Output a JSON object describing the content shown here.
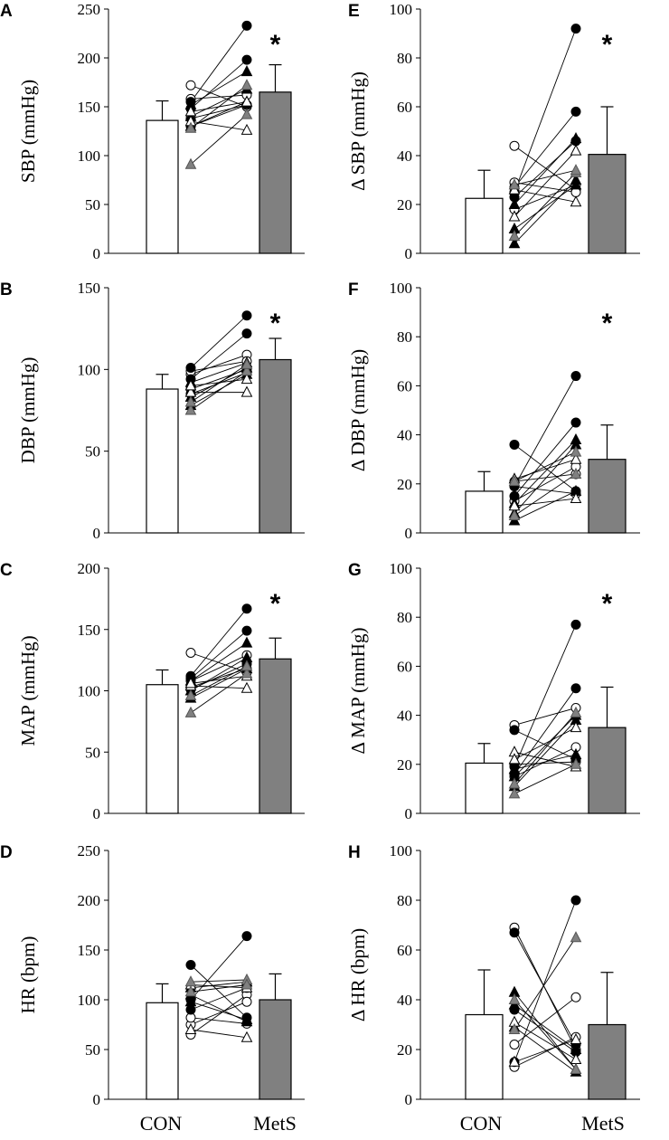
{
  "categories": [
    "CON",
    "MetS"
  ],
  "colors": {
    "con_bar": "#ffffff",
    "mets_bar": "#808080",
    "stroke": "#000000",
    "grey_marker": "#808080"
  },
  "chart_data": [
    {
      "panel": "A",
      "type": "bar",
      "ylabel": "SBP (mmHg)",
      "ylim": [
        0,
        250
      ],
      "yticks": [
        "0",
        "50",
        "100",
        "150",
        "200",
        "250"
      ],
      "categories": [
        "CON",
        "MetS"
      ],
      "series": [
        {
          "name": "CON",
          "value": 136,
          "error": 20
        },
        {
          "name": "MetS",
          "value": 165,
          "error": 28
        }
      ],
      "significance": "*",
      "pairs": [
        {
          "shape": "circle",
          "fill": "white",
          "values": [
            172,
            150
          ]
        },
        {
          "shape": "circle",
          "fill": "white",
          "values": [
            158,
            162
          ]
        },
        {
          "shape": "circle",
          "fill": "white",
          "values": [
            138,
            152
          ]
        },
        {
          "shape": "circle",
          "fill": "black",
          "values": [
            155,
            233
          ]
        },
        {
          "shape": "circle",
          "fill": "black",
          "values": [
            148,
            198
          ]
        },
        {
          "shape": "circle",
          "fill": "black",
          "values": [
            130,
            152
          ]
        },
        {
          "shape": "triangle",
          "fill": "black",
          "values": [
            152,
            186
          ]
        },
        {
          "shape": "triangle",
          "fill": "black",
          "values": [
            140,
            168
          ]
        },
        {
          "shape": "triangle",
          "fill": "black",
          "values": [
            130,
            155
          ]
        },
        {
          "shape": "triangle",
          "fill": "white",
          "values": [
            135,
            126
          ]
        },
        {
          "shape": "triangle",
          "fill": "white",
          "values": [
            145,
            155
          ]
        },
        {
          "shape": "triangle",
          "fill": "grey",
          "values": [
            91,
            142
          ]
        },
        {
          "shape": "triangle",
          "fill": "grey",
          "values": [
            128,
            172
          ]
        }
      ]
    },
    {
      "panel": "E",
      "type": "bar",
      "ylabel": "Δ SBP (mmHg)",
      "ylim": [
        0,
        100
      ],
      "yticks": [
        "0",
        "20",
        "40",
        "60",
        "80",
        "100"
      ],
      "categories": [
        "CON",
        "MetS"
      ],
      "series": [
        {
          "name": "CON",
          "value": 22.5,
          "error": 11.5
        },
        {
          "name": "MetS",
          "value": 40.5,
          "error": 19.5
        }
      ],
      "significance": "*",
      "pairs": [
        {
          "shape": "circle",
          "fill": "white",
          "values": [
            44,
            26
          ]
        },
        {
          "shape": "circle",
          "fill": "white",
          "values": [
            18,
            28
          ]
        },
        {
          "shape": "circle",
          "fill": "white",
          "values": [
            29,
            25
          ]
        },
        {
          "shape": "circle",
          "fill": "black",
          "values": [
            25,
            92
          ]
        },
        {
          "shape": "circle",
          "fill": "black",
          "values": [
            27,
            58
          ]
        },
        {
          "shape": "circle",
          "fill": "black",
          "values": [
            23,
            46
          ]
        },
        {
          "shape": "triangle",
          "fill": "black",
          "values": [
            20,
            47
          ]
        },
        {
          "shape": "triangle",
          "fill": "black",
          "values": [
            10,
            28
          ]
        },
        {
          "shape": "triangle",
          "fill": "black",
          "values": [
            4,
            30
          ]
        },
        {
          "shape": "triangle",
          "fill": "white",
          "values": [
            15,
            42
          ]
        },
        {
          "shape": "triangle",
          "fill": "white",
          "values": [
            26,
            21
          ]
        },
        {
          "shape": "triangle",
          "fill": "grey",
          "values": [
            7,
            33
          ]
        },
        {
          "shape": "triangle",
          "fill": "grey",
          "values": [
            28,
            34
          ]
        }
      ]
    },
    {
      "panel": "B",
      "type": "bar",
      "ylabel": "DBP (mmHg)",
      "ylim": [
        0,
        150
      ],
      "yticks": [
        "0",
        "50",
        "100",
        "150"
      ],
      "categories": [
        "CON",
        "MetS"
      ],
      "series": [
        {
          "name": "CON",
          "value": 88,
          "error": 9
        },
        {
          "name": "MetS",
          "value": 106,
          "error": 13
        }
      ],
      "significance": "*",
      "pairs": [
        {
          "shape": "circle",
          "fill": "white",
          "values": [
            97,
            109
          ]
        },
        {
          "shape": "circle",
          "fill": "white",
          "values": [
            99,
            105
          ]
        },
        {
          "shape": "circle",
          "fill": "white",
          "values": [
            88,
            100
          ]
        },
        {
          "shape": "circle",
          "fill": "black",
          "values": [
            101,
            133
          ]
        },
        {
          "shape": "circle",
          "fill": "black",
          "values": [
            94,
            122
          ]
        },
        {
          "shape": "circle",
          "fill": "black",
          "values": [
            85,
            98
          ]
        },
        {
          "shape": "triangle",
          "fill": "black",
          "values": [
            92,
            104
          ]
        },
        {
          "shape": "triangle",
          "fill": "black",
          "values": [
            83,
            101
          ]
        },
        {
          "shape": "triangle",
          "fill": "black",
          "values": [
            78,
            97
          ]
        },
        {
          "shape": "triangle",
          "fill": "white",
          "values": [
            86,
            86
          ]
        },
        {
          "shape": "triangle",
          "fill": "white",
          "values": [
            90,
            94
          ]
        },
        {
          "shape": "triangle",
          "fill": "grey",
          "values": [
            75,
            99
          ]
        },
        {
          "shape": "triangle",
          "fill": "grey",
          "values": [
            80,
            103
          ]
        }
      ]
    },
    {
      "panel": "F",
      "type": "bar",
      "ylabel": "Δ DBP (mmHg)",
      "ylim": [
        0,
        100
      ],
      "yticks": [
        "0",
        "20",
        "40",
        "60",
        "80",
        "100"
      ],
      "categories": [
        "CON",
        "MetS"
      ],
      "series": [
        {
          "name": "CON",
          "value": 17,
          "error": 8
        },
        {
          "name": "MetS",
          "value": 30,
          "error": 14
        }
      ],
      "significance": "*",
      "pairs": [
        {
          "shape": "circle",
          "fill": "white",
          "values": [
            21,
            24
          ]
        },
        {
          "shape": "circle",
          "fill": "white",
          "values": [
            13,
            27
          ]
        },
        {
          "shape": "circle",
          "fill": "white",
          "values": [
            19,
            16
          ]
        },
        {
          "shape": "circle",
          "fill": "black",
          "values": [
            36,
            17
          ]
        },
        {
          "shape": "circle",
          "fill": "black",
          "values": [
            19,
            64
          ]
        },
        {
          "shape": "circle",
          "fill": "black",
          "values": [
            15,
            45
          ]
        },
        {
          "shape": "triangle",
          "fill": "black",
          "values": [
            12,
            38
          ]
        },
        {
          "shape": "triangle",
          "fill": "black",
          "values": [
            8,
            36
          ]
        },
        {
          "shape": "triangle",
          "fill": "black",
          "values": [
            5,
            17
          ]
        },
        {
          "shape": "triangle",
          "fill": "white",
          "values": [
            11,
            14
          ]
        },
        {
          "shape": "triangle",
          "fill": "white",
          "values": [
            22,
            30
          ]
        },
        {
          "shape": "triangle",
          "fill": "grey",
          "values": [
            7,
            24
          ]
        },
        {
          "shape": "triangle",
          "fill": "grey",
          "values": [
            21,
            33
          ]
        }
      ]
    },
    {
      "panel": "C",
      "type": "bar",
      "ylabel": "MAP (mmHg)",
      "ylim": [
        0,
        200
      ],
      "yticks": [
        "0",
        "50",
        "100",
        "150",
        "200"
      ],
      "categories": [
        "CON",
        "MetS"
      ],
      "series": [
        {
          "name": "CON",
          "value": 105,
          "error": 12
        },
        {
          "name": "MetS",
          "value": 126,
          "error": 17
        }
      ],
      "significance": "*",
      "pairs": [
        {
          "shape": "circle",
          "fill": "white",
          "values": [
            131,
            115
          ]
        },
        {
          "shape": "circle",
          "fill": "white",
          "values": [
            108,
            129
          ]
        },
        {
          "shape": "circle",
          "fill": "white",
          "values": [
            103,
            118
          ]
        },
        {
          "shape": "circle",
          "fill": "black",
          "values": [
            112,
            167
          ]
        },
        {
          "shape": "circle",
          "fill": "black",
          "values": [
            110,
            149
          ]
        },
        {
          "shape": "circle",
          "fill": "black",
          "values": [
            101,
            122
          ]
        },
        {
          "shape": "triangle",
          "fill": "black",
          "values": [
            108,
            139
          ]
        },
        {
          "shape": "triangle",
          "fill": "black",
          "values": [
            100,
            127
          ]
        },
        {
          "shape": "triangle",
          "fill": "black",
          "values": [
            94,
            118
          ]
        },
        {
          "shape": "triangle",
          "fill": "white",
          "values": [
            104,
            102
          ]
        },
        {
          "shape": "triangle",
          "fill": "white",
          "values": [
            106,
            112
          ]
        },
        {
          "shape": "triangle",
          "fill": "grey",
          "values": [
            82,
            114
          ]
        },
        {
          "shape": "triangle",
          "fill": "grey",
          "values": [
            96,
            120
          ]
        }
      ]
    },
    {
      "panel": "G",
      "type": "bar",
      "ylabel": "Δ MAP (mmHg)",
      "ylim": [
        0,
        100
      ],
      "yticks": [
        "0",
        "20",
        "40",
        "60",
        "80",
        "100"
      ],
      "categories": [
        "CON",
        "MetS"
      ],
      "series": [
        {
          "name": "CON",
          "value": 20.5,
          "error": 8
        },
        {
          "name": "MetS",
          "value": 35,
          "error": 16.5
        }
      ],
      "significance": "*",
      "pairs": [
        {
          "shape": "circle",
          "fill": "white",
          "values": [
            36,
            43
          ]
        },
        {
          "shape": "circle",
          "fill": "white",
          "values": [
            15,
            27
          ]
        },
        {
          "shape": "circle",
          "fill": "white",
          "values": [
            20,
            21
          ]
        },
        {
          "shape": "circle",
          "fill": "black",
          "values": [
            34,
            22
          ]
        },
        {
          "shape": "circle",
          "fill": "black",
          "values": [
            19,
            77
          ]
        },
        {
          "shape": "circle",
          "fill": "black",
          "values": [
            16,
            51
          ]
        },
        {
          "shape": "triangle",
          "fill": "black",
          "values": [
            15,
            40
          ]
        },
        {
          "shape": "triangle",
          "fill": "black",
          "values": [
            11,
            38
          ]
        },
        {
          "shape": "triangle",
          "fill": "black",
          "values": [
            18,
            24
          ]
        },
        {
          "shape": "triangle",
          "fill": "white",
          "values": [
            25,
            19
          ]
        },
        {
          "shape": "triangle",
          "fill": "white",
          "values": [
            22,
            35
          ]
        },
        {
          "shape": "triangle",
          "fill": "grey",
          "values": [
            8,
            20
          ]
        },
        {
          "shape": "triangle",
          "fill": "grey",
          "values": [
            12,
            41
          ]
        }
      ]
    },
    {
      "panel": "D",
      "type": "bar",
      "ylabel": "HR (bpm)",
      "ylim": [
        0,
        250
      ],
      "yticks": [
        "0",
        "50",
        "100",
        "150",
        "200",
        "250"
      ],
      "categories": [
        "CON",
        "MetS"
      ],
      "series": [
        {
          "name": "CON",
          "value": 97,
          "error": 19
        },
        {
          "name": "MetS",
          "value": 100,
          "error": 26
        }
      ],
      "significance": "",
      "pairs": [
        {
          "shape": "circle",
          "fill": "white",
          "values": [
            65,
            105
          ]
        },
        {
          "shape": "circle",
          "fill": "white",
          "values": [
            75,
            98
          ]
        },
        {
          "shape": "circle",
          "fill": "white",
          "values": [
            82,
            76
          ]
        },
        {
          "shape": "circle",
          "fill": "black",
          "values": [
            135,
            82
          ]
        },
        {
          "shape": "circle",
          "fill": "black",
          "values": [
            100,
            164
          ]
        },
        {
          "shape": "circle",
          "fill": "black",
          "values": [
            90,
            112
          ]
        },
        {
          "shape": "triangle",
          "fill": "black",
          "values": [
            112,
            118
          ]
        },
        {
          "shape": "triangle",
          "fill": "black",
          "values": [
            105,
            78
          ]
        },
        {
          "shape": "triangle",
          "fill": "black",
          "values": [
            98,
            80
          ]
        },
        {
          "shape": "triangle",
          "fill": "white",
          "values": [
            70,
            62
          ]
        },
        {
          "shape": "triangle",
          "fill": "white",
          "values": [
            115,
            112
          ]
        },
        {
          "shape": "triangle",
          "fill": "grey",
          "values": [
            118,
            120
          ]
        },
        {
          "shape": "triangle",
          "fill": "grey",
          "values": [
            108,
            115
          ]
        }
      ]
    },
    {
      "panel": "H",
      "type": "bar",
      "ylabel": "Δ HR (bpm)",
      "ylim": [
        0,
        100
      ],
      "yticks": [
        "0",
        "20",
        "40",
        "60",
        "80",
        "100"
      ],
      "categories": [
        "CON",
        "MetS"
      ],
      "series": [
        {
          "name": "CON",
          "value": 34,
          "error": 18
        },
        {
          "name": "MetS",
          "value": 30,
          "error": 21
        }
      ],
      "significance": "",
      "pairs": [
        {
          "shape": "circle",
          "fill": "white",
          "values": [
            69,
            20
          ]
        },
        {
          "shape": "circle",
          "fill": "white",
          "values": [
            22,
            41
          ]
        },
        {
          "shape": "circle",
          "fill": "white",
          "values": [
            13,
            25
          ]
        },
        {
          "shape": "circle",
          "fill": "black",
          "values": [
            67,
            22
          ]
        },
        {
          "shape": "circle",
          "fill": "black",
          "values": [
            36,
            19
          ]
        },
        {
          "shape": "circle",
          "fill": "black",
          "values": [
            15,
            80
          ]
        },
        {
          "shape": "triangle",
          "fill": "black",
          "values": [
            43,
            12
          ]
        },
        {
          "shape": "triangle",
          "fill": "black",
          "values": [
            38,
            20
          ]
        },
        {
          "shape": "triangle",
          "fill": "black",
          "values": [
            29,
            11
          ]
        },
        {
          "shape": "triangle",
          "fill": "white",
          "values": [
            31,
            16
          ]
        },
        {
          "shape": "triangle",
          "fill": "white",
          "values": [
            15,
            24
          ]
        },
        {
          "shape": "triangle",
          "fill": "grey",
          "values": [
            28,
            65
          ]
        },
        {
          "shape": "triangle",
          "fill": "grey",
          "values": [
            40,
            12
          ]
        }
      ]
    }
  ]
}
